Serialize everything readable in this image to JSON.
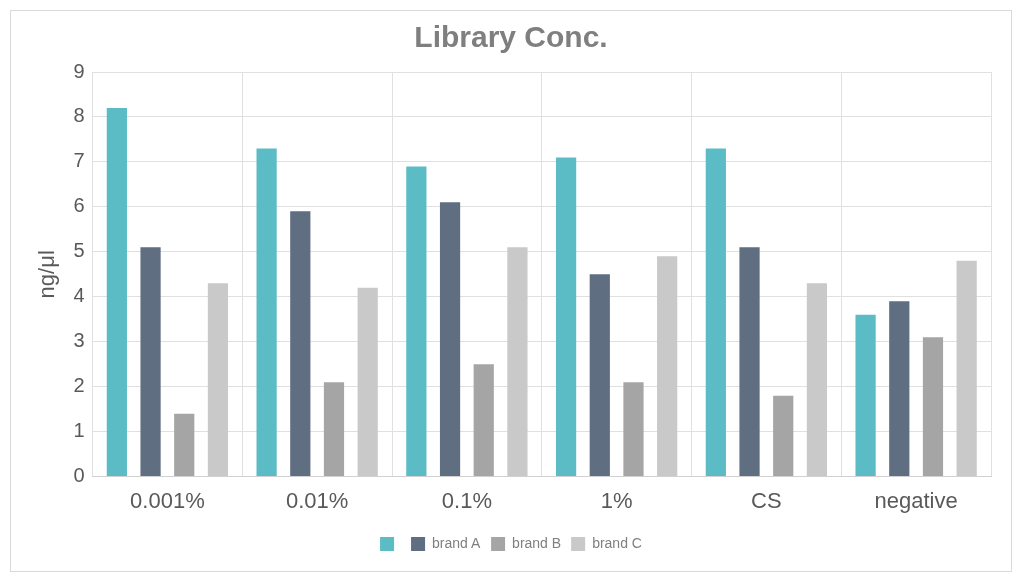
{
  "chart_data": {
    "type": "bar",
    "title": "Library Conc.",
    "ylabel": "ng/μl",
    "categories": [
      "0.001%",
      "0.01%",
      "0.1%",
      "1%",
      "CS",
      "negative"
    ],
    "series": [
      {
        "color": "#5bbcc6",
        "values": [
          8.2,
          7.3,
          6.9,
          7.1,
          7.3,
          3.6
        ]
      },
      {
        "name": "brand A",
        "color": "#5f6e80",
        "values": [
          5.1,
          5.9,
          6.1,
          4.5,
          5.1,
          3.9
        ]
      },
      {
        "name": "brand B",
        "color": "#a5a5a5",
        "values": [
          1.4,
          2.1,
          2.5,
          2.1,
          1.8,
          3.1
        ]
      },
      {
        "name": "brand C",
        "color": "#c9c9c9",
        "values": [
          4.3,
          4.2,
          5.1,
          4.9,
          4.3,
          4.8
        ]
      }
    ],
    "ylim": [
      0,
      9
    ],
    "yticks": [
      0,
      1,
      2,
      3,
      4,
      5,
      6,
      7,
      8,
      9
    ],
    "grid": true,
    "legend": "bottom"
  }
}
